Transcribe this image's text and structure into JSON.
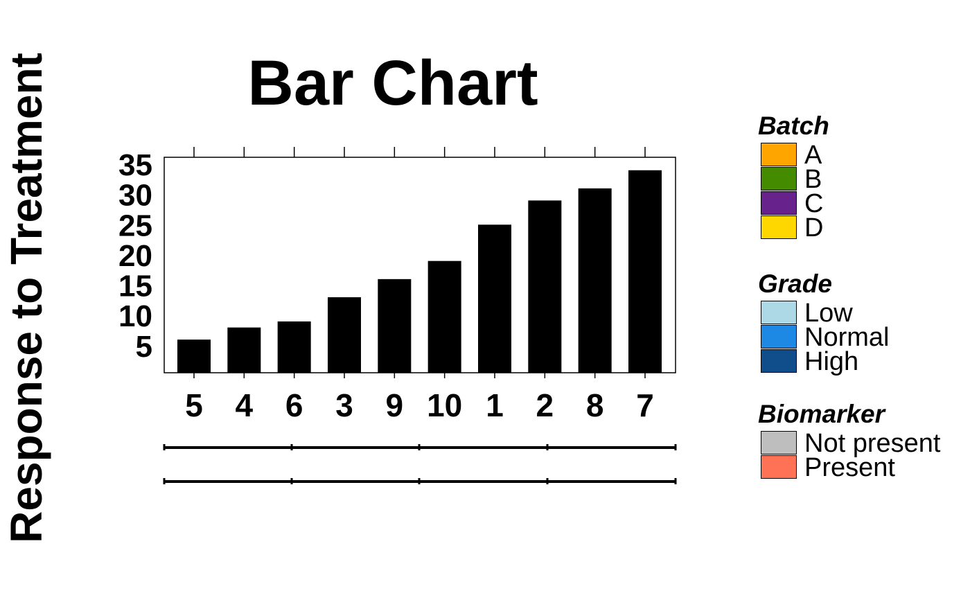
{
  "chart_data": {
    "type": "bar",
    "title": "Bar Chart",
    "xlabel": "",
    "ylabel": "Response to Treatment",
    "categories": [
      "5",
      "4",
      "6",
      "3",
      "9",
      "10",
      "1",
      "2",
      "8",
      "7"
    ],
    "values": [
      6,
      8,
      9,
      13,
      16,
      19,
      25,
      29,
      31,
      34
    ],
    "yticks": [
      "5",
      "10",
      "15",
      "20",
      "25",
      "30",
      "35"
    ],
    "ylim": [
      0,
      35
    ],
    "bar_color": "#000000",
    "grid": false,
    "legend_position": "right"
  },
  "legends": [
    {
      "title": "Batch",
      "items": [
        {
          "label": "A",
          "color": "#FFA500"
        },
        {
          "label": "B",
          "color": "#458B00"
        },
        {
          "label": "C",
          "color": "#68228B"
        },
        {
          "label": "D",
          "color": "#FFD700"
        }
      ]
    },
    {
      "title": "Grade",
      "items": [
        {
          "label": "Low",
          "color": "#ADD8E6"
        },
        {
          "label": "Normal",
          "color": "#1E88E5"
        },
        {
          "label": "High",
          "color": "#104E8B"
        }
      ]
    },
    {
      "title": "Biomarker",
      "items": [
        {
          "label": "Not present",
          "color": "#BEBEBE"
        },
        {
          "label": "Present",
          "color": "#FF7256"
        }
      ]
    }
  ]
}
